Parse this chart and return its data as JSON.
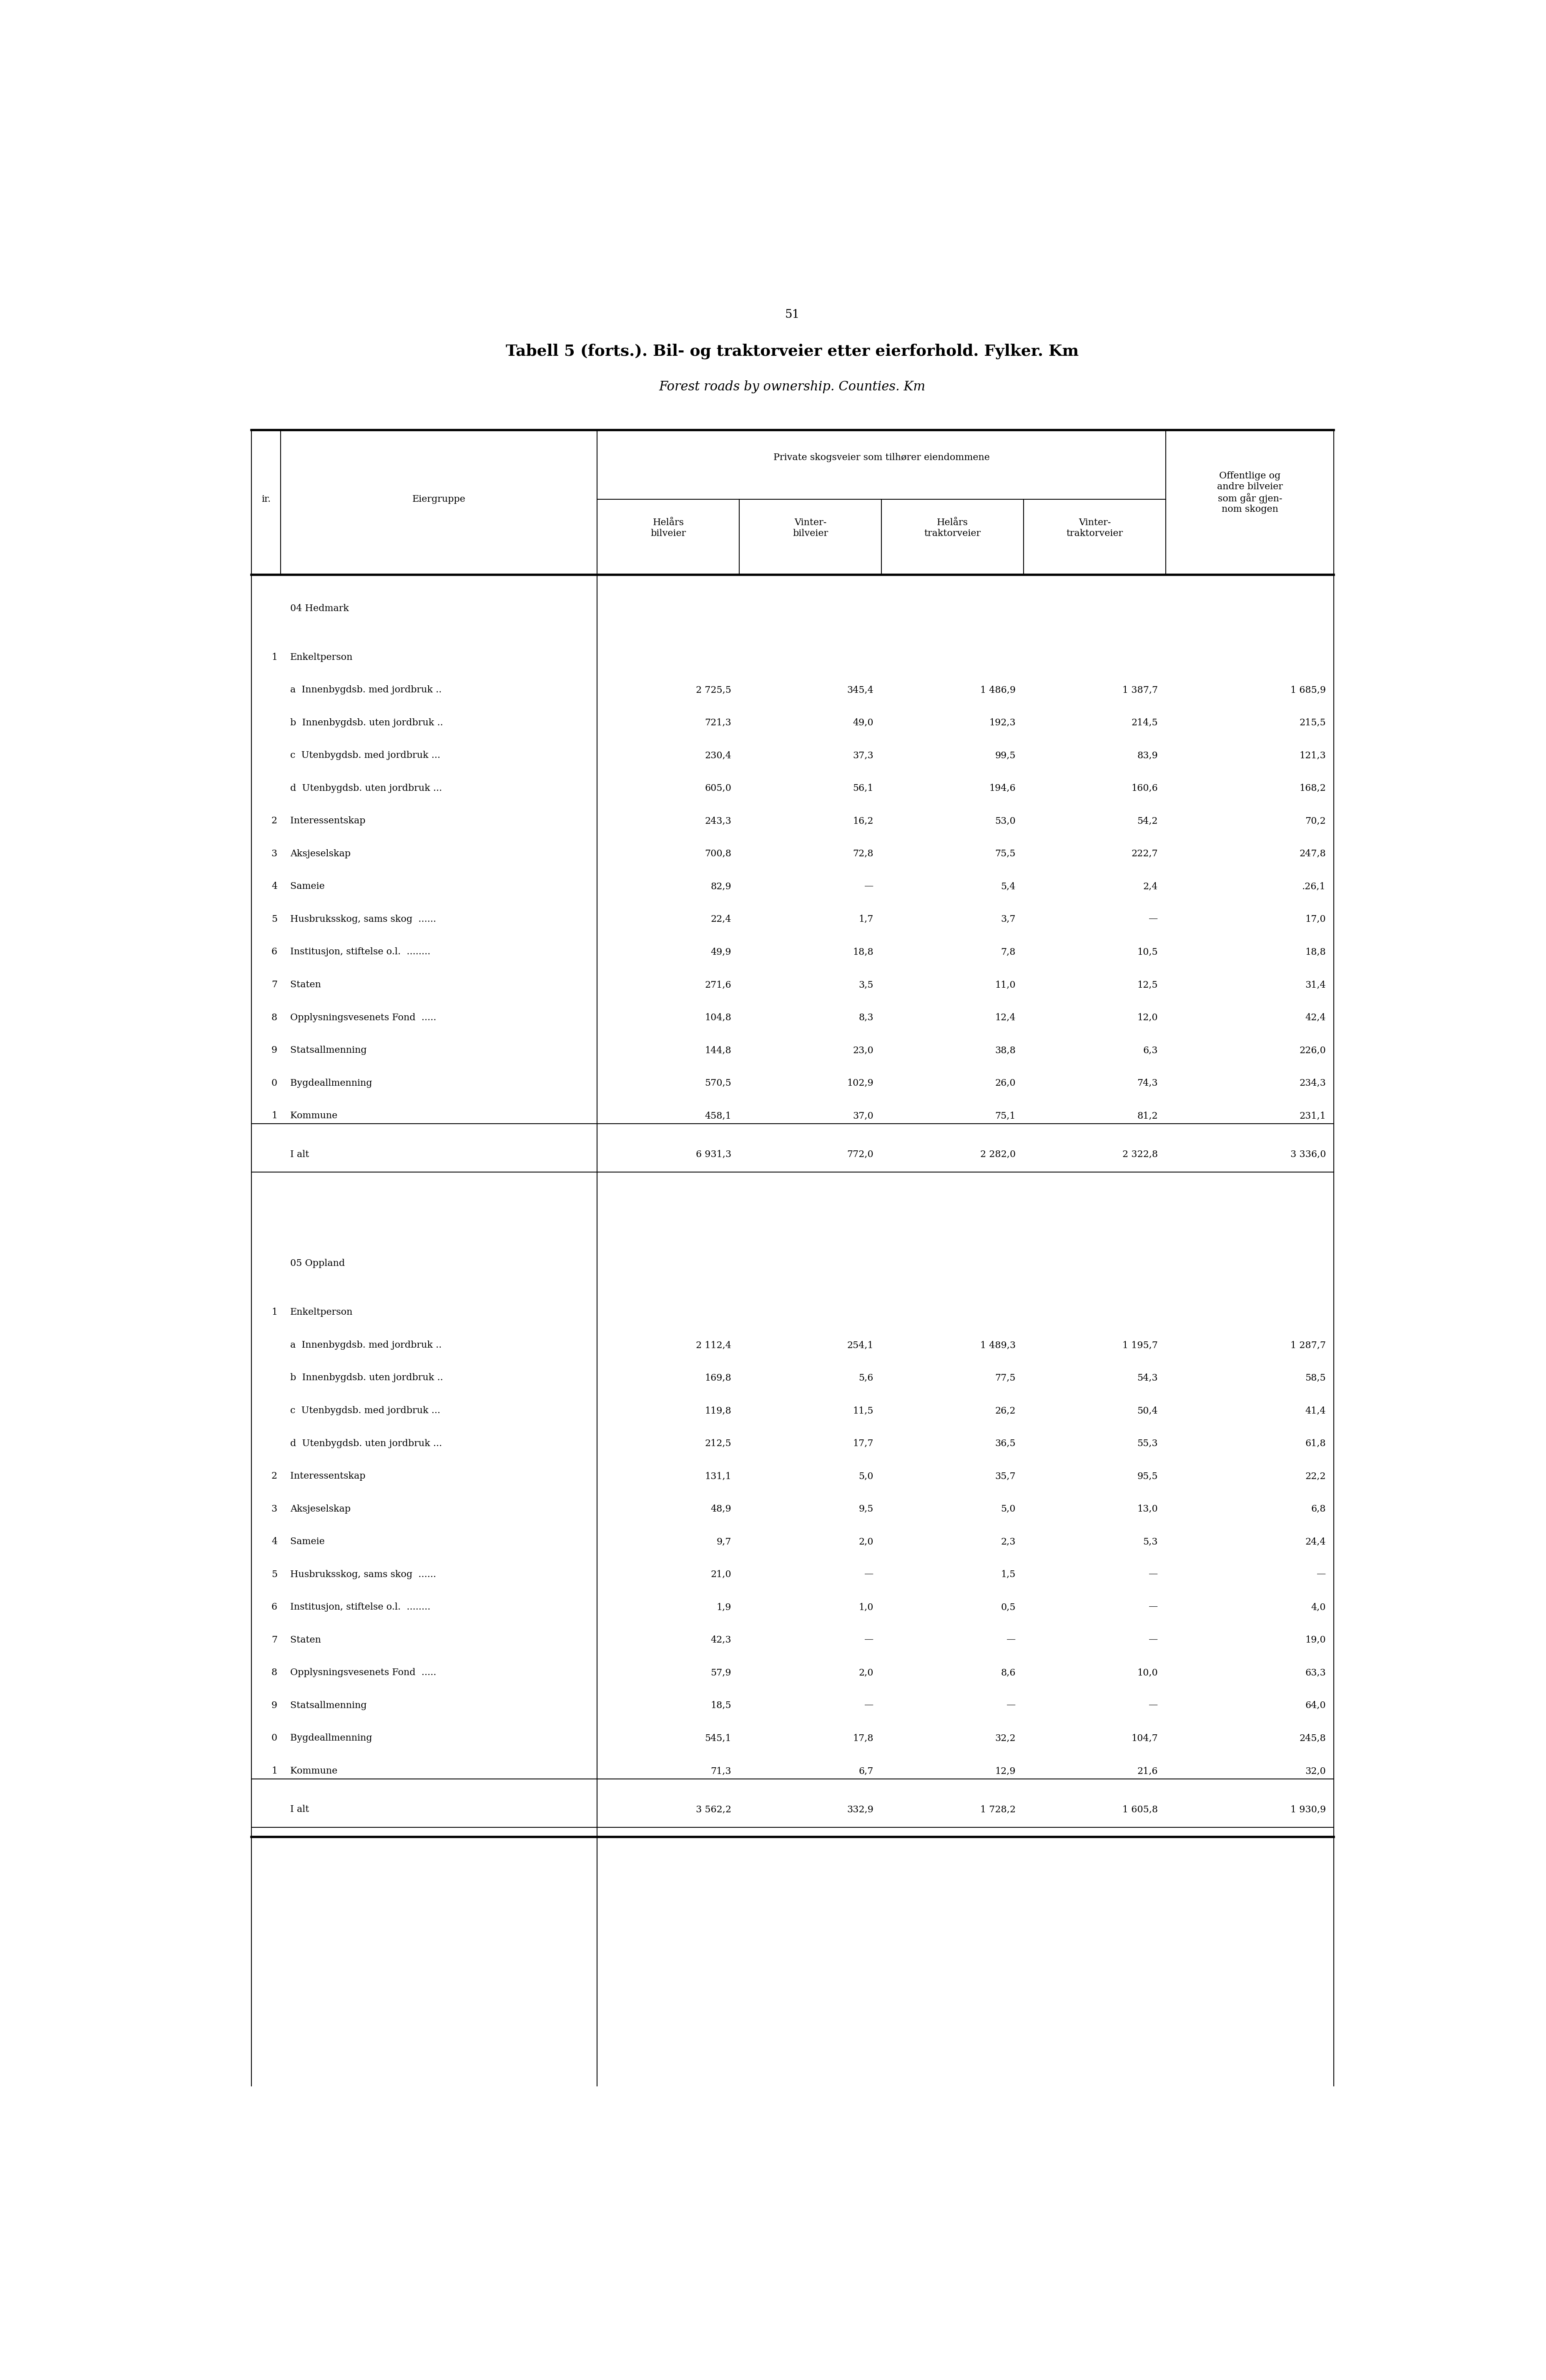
{
  "title_line1": "Tabell 5 (forts.). Bil- og traktorveier etter eierforhold. Fylker. Km",
  "title_line2": "Forest roads by ownership. Counties. Km",
  "page_number": "51",
  "col_header_ir": "ir.",
  "col_header_eier": "Eiergruppe",
  "col_header_private": "Private skogsveier som tilhører eiendommene",
  "col_header_sub1": "Helårs\nbilveier",
  "col_header_sub2": "Vinter-\nbilveier",
  "col_header_sub3": "Helårs\ntraktorveier",
  "col_header_sub4": "Vinter-\ntraktorveier",
  "col_header_last": "Offentlige og\nandre bilveier\nsom går gjen-\nnom skogen",
  "sections": [
    {
      "county": "04 Hedmark",
      "rows": [
        {
          "nr": "1",
          "label": "Enkeltperson",
          "v1": "",
          "v2": "",
          "v3": "",
          "v4": "",
          "v5": ""
        },
        {
          "nr": "",
          "label": "a  Innenbygdsb. med jordbruk ..",
          "v1": "2 725,5",
          "v2": "345,4",
          "v3": "1 486,9",
          "v4": "1 387,7",
          "v5": "1 685,9"
        },
        {
          "nr": "",
          "label": "b  Innenbygdsb. uten jordbruk ..",
          "v1": "721,3",
          "v2": "49,0",
          "v3": "192,3",
          "v4": "214,5",
          "v5": "215,5"
        },
        {
          "nr": "",
          "label": "c  Utenbygdsb. med jordbruk ...",
          "v1": "230,4",
          "v2": "37,3",
          "v3": "99,5",
          "v4": "83,9",
          "v5": "121,3"
        },
        {
          "nr": "",
          "label": "d  Utenbygdsb. uten jordbruk ...",
          "v1": "605,0",
          "v2": "56,1",
          "v3": "194,6",
          "v4": "160,6",
          "v5": "168,2"
        },
        {
          "nr": "2",
          "label": "Interessentskap                      ",
          "v1": "243,3",
          "v2": "16,2",
          "v3": "53,0",
          "v4": "54,2",
          "v5": "70,2"
        },
        {
          "nr": "3",
          "label": "Aksjeselskap                        ",
          "v1": "700,8",
          "v2": "72,8",
          "v3": "75,5",
          "v4": "222,7",
          "v5": "247,8"
        },
        {
          "nr": "4",
          "label": "Sameie                              ",
          "v1": "82,9",
          "v2": "—",
          "v3": "5,4",
          "v4": "2,4",
          "v5": ".26,1"
        },
        {
          "nr": "5",
          "label": "Husbruksskog, sams skog  ......",
          "v1": "22,4",
          "v2": "1,7",
          "v3": "3,7",
          "v4": "—",
          "v5": "17,0"
        },
        {
          "nr": "6",
          "label": "Institusjon, stiftelse o.l.  ........",
          "v1": "49,9",
          "v2": "18,8",
          "v3": "7,8",
          "v4": "10,5",
          "v5": "18,8"
        },
        {
          "nr": "7",
          "label": "Staten                              ",
          "v1": "271,6",
          "v2": "3,5",
          "v3": "11,0",
          "v4": "12,5",
          "v5": "31,4"
        },
        {
          "nr": "8",
          "label": "Opplysningsvesenets Fond  .....",
          "v1": "104,8",
          "v2": "8,3",
          "v3": "12,4",
          "v4": "12,0",
          "v5": "42,4"
        },
        {
          "nr": "9",
          "label": "Statsallmenning                    ",
          "v1": "144,8",
          "v2": "23,0",
          "v3": "38,8",
          "v4": "6,3",
          "v5": "226,0"
        },
        {
          "nr": "0",
          "label": "Bygdeallmenning                 ",
          "v1": "570,5",
          "v2": "102,9",
          "v3": "26,0",
          "v4": "74,3",
          "v5": "234,3"
        },
        {
          "nr": "1",
          "label": "Kommune                          ",
          "v1": "458,1",
          "v2": "37,0",
          "v3": "75,1",
          "v4": "81,2",
          "v5": "231,1"
        }
      ],
      "total_label": "I alt                                 ",
      "total": [
        "6 931,3",
        "772,0",
        "2 282,0",
        "2 322,8",
        "3 336,0"
      ]
    },
    {
      "county": "05 Oppland",
      "rows": [
        {
          "nr": "1",
          "label": "Enkeltperson",
          "v1": "",
          "v2": "",
          "v3": "",
          "v4": "",
          "v5": ""
        },
        {
          "nr": "",
          "label": "a  Innenbygdsb. med jordbruk ..",
          "v1": "2 112,4",
          "v2": "254,1",
          "v3": "1 489,3",
          "v4": "1 195,7",
          "v5": "1 287,7"
        },
        {
          "nr": "",
          "label": "b  Innenbygdsb. uten jordbruk ..",
          "v1": "169,8",
          "v2": "5,6",
          "v3": "77,5",
          "v4": "54,3",
          "v5": "58,5"
        },
        {
          "nr": "",
          "label": "c  Utenbygdsb. med jordbruk ...",
          "v1": "119,8",
          "v2": "11,5",
          "v3": "26,2",
          "v4": "50,4",
          "v5": "41,4"
        },
        {
          "nr": "",
          "label": "d  Utenbygdsb. uten jordbruk ...",
          "v1": "212,5",
          "v2": "17,7",
          "v3": "36,5",
          "v4": "55,3",
          "v5": "61,8"
        },
        {
          "nr": "2",
          "label": "Interessentskap                      ",
          "v1": "131,1",
          "v2": "5,0",
          "v3": "35,7",
          "v4": "95,5",
          "v5": "22,2"
        },
        {
          "nr": "3",
          "label": "Aksjeselskap                        ",
          "v1": "48,9",
          "v2": "9,5",
          "v3": "5,0",
          "v4": "13,0",
          "v5": "6,8"
        },
        {
          "nr": "4",
          "label": "Sameie                              ",
          "v1": "9,7",
          "v2": "2,0",
          "v3": "2,3",
          "v4": "5,3",
          "v5": "24,4"
        },
        {
          "nr": "5",
          "label": "Husbruksskog, sams skog  ......",
          "v1": "21,0",
          "v2": "—",
          "v3": "1,5",
          "v4": "—",
          "v5": "—"
        },
        {
          "nr": "6",
          "label": "Institusjon, stiftelse o.l.  ........",
          "v1": "1,9",
          "v2": "1,0",
          "v3": "0,5",
          "v4": "—",
          "v5": "4,0"
        },
        {
          "nr": "7",
          "label": "Staten                              ",
          "v1": "42,3",
          "v2": "—",
          "v3": "—",
          "v4": "—",
          "v5": "19,0"
        },
        {
          "nr": "8",
          "label": "Opplysningsvesenets Fond  .....",
          "v1": "57,9",
          "v2": "2,0",
          "v3": "8,6",
          "v4": "10,0",
          "v5": "63,3"
        },
        {
          "nr": "9",
          "label": "Statsallmenning                    ",
          "v1": "18,5",
          "v2": "—",
          "v3": "—",
          "v4": "—",
          "v5": "64,0"
        },
        {
          "nr": "0",
          "label": "Bygdeallmenning                 ",
          "v1": "545,1",
          "v2": "17,8",
          "v3": "32,2",
          "v4": "104,7",
          "v5": "245,8"
        },
        {
          "nr": "1",
          "label": "Kommune                          ",
          "v1": "71,3",
          "v2": "6,7",
          "v3": "12,9",
          "v4": "21,6",
          "v5": "32,0"
        }
      ],
      "total_label": "I alt                                 ",
      "total": [
        "3 562,2",
        "332,9",
        "1 728,2",
        "1 605,8",
        "1 930,9"
      ]
    }
  ]
}
